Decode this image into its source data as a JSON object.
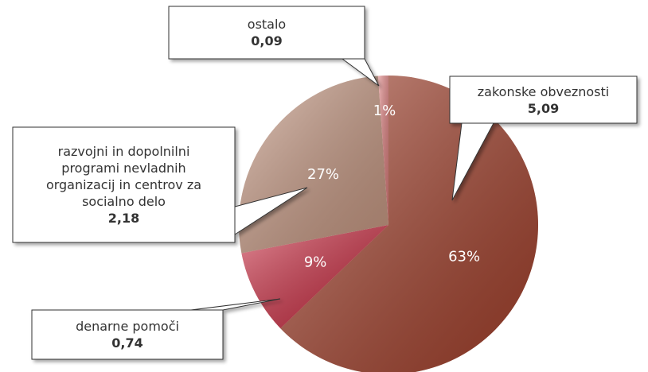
{
  "chart_data": {
    "type": "pie",
    "categories": [
      "zakonske obveznosti",
      "denarne pomoči",
      "razvojni in dopolnilni programi nevladnih organizacij in centrov za socialno delo",
      "ostalo"
    ],
    "values": [
      5.09,
      0.74,
      2.18,
      0.09
    ],
    "value_labels": [
      "5,09",
      "0,74",
      "2,18",
      "0,09"
    ],
    "percent_labels": [
      "63%",
      "9%",
      "27%",
      "1%"
    ],
    "colors": [
      "#a5412c",
      "#cc2a40",
      "#c99a84",
      "#e07f7f"
    ]
  }
}
